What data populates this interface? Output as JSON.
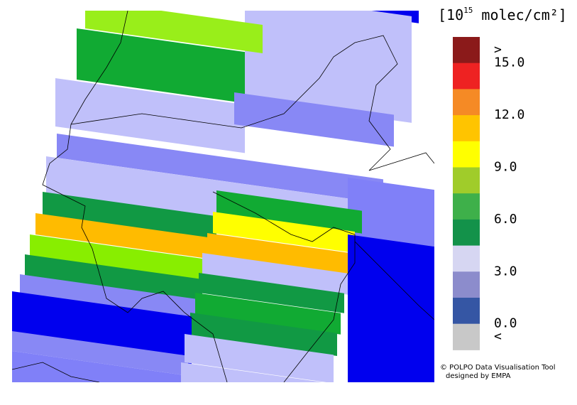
{
  "legend": {
    "title_prefix": "[10",
    "title_exponent": "15",
    "title_suffix": " molec/cm²]",
    "colors": [
      "#8b1a1a",
      "#ee2222",
      "#f58a25",
      "#ffc400",
      "#ffff00",
      "#a0cc2a",
      "#3eb04a",
      "#13924a",
      "#d6d6f2",
      "#8c8ccc",
      "#3556a4",
      "#c8c8c8"
    ],
    "labels": [
      ">",
      "15.0",
      "12.0",
      "9.0",
      "6.0",
      "3.0",
      "0.0",
      "<"
    ]
  },
  "credit": {
    "line1": "© POLPO Data Visualisation Tool",
    "line2": "designed by EMPA"
  }
}
